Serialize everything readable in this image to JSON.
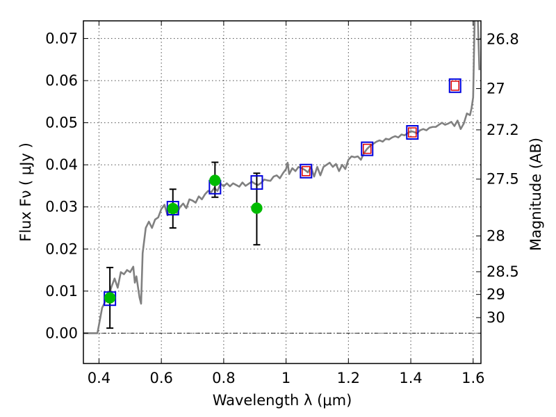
{
  "chart_data": {
    "type": "scatter",
    "xlabel": "Wavelength  λ (μm)",
    "ylabel": "Flux  Fν  ( μJy )",
    "y2label": "Magnitude (AB)",
    "xlim": [
      0.35,
      1.625
    ],
    "ylim": [
      -0.0072,
      0.0742
    ],
    "x_ticks": [
      0.4,
      0.6,
      0.8,
      1.0,
      1.2,
      1.4,
      1.6
    ],
    "x_tick_labels": [
      "0.4",
      "0.6",
      "0.8",
      "1",
      "1.2",
      "1.4",
      "1.6"
    ],
    "y_ticks": [
      0.0,
      0.01,
      0.02,
      0.03,
      0.04,
      0.05,
      0.06,
      0.07
    ],
    "y_tick_labels": [
      "0.00",
      "0.01",
      "0.02",
      "0.03",
      "0.04",
      "0.05",
      "0.06",
      "0.07"
    ],
    "magnitude_ticks": [
      {
        "label": "26.8",
        "flux": 0.0698
      },
      {
        "label": "27",
        "flux": 0.0581
      },
      {
        "label": "27.2",
        "flux": 0.0483
      },
      {
        "label": "27.5",
        "flux": 0.0366
      },
      {
        "label": "28",
        "flux": 0.0231
      },
      {
        "label": "28.5",
        "flux": 0.0146
      },
      {
        "label": "29",
        "flux": 0.0092
      },
      {
        "label": "30",
        "flux": 0.0037
      }
    ],
    "grid": true,
    "zero_line": true,
    "colors": {
      "model": "#808080",
      "observed": "#00bb00",
      "model_box": "#0000dd",
      "inner_box": "#dd0000",
      "errorbar": "#000000"
    },
    "series": [
      {
        "type": "line",
        "points": [
          [
            0.35,
            0.0
          ],
          [
            0.38,
            0.0
          ],
          [
            0.395,
            0.0
          ],
          [
            0.41,
            0.006
          ],
          [
            0.42,
            0.0075
          ],
          [
            0.43,
            0.0085
          ],
          [
            0.44,
            0.011
          ],
          [
            0.45,
            0.013
          ],
          [
            0.46,
            0.0108
          ],
          [
            0.47,
            0.0145
          ],
          [
            0.48,
            0.014
          ],
          [
            0.49,
            0.015
          ],
          [
            0.5,
            0.0145
          ],
          [
            0.51,
            0.0158
          ],
          [
            0.515,
            0.012
          ],
          [
            0.52,
            0.0135
          ],
          [
            0.53,
            0.0085
          ],
          [
            0.535,
            0.007
          ],
          [
            0.54,
            0.019
          ],
          [
            0.55,
            0.025
          ],
          [
            0.56,
            0.0265
          ],
          [
            0.57,
            0.025
          ],
          [
            0.58,
            0.027
          ],
          [
            0.59,
            0.0275
          ],
          [
            0.6,
            0.0295
          ],
          [
            0.61,
            0.0305
          ],
          [
            0.62,
            0.028
          ],
          [
            0.63,
            0.0295
          ],
          [
            0.64,
            0.0302
          ],
          [
            0.65,
            0.0285
          ],
          [
            0.66,
            0.03
          ],
          [
            0.67,
            0.0308
          ],
          [
            0.68,
            0.0297
          ],
          [
            0.69,
            0.0318
          ],
          [
            0.7,
            0.0315
          ],
          [
            0.71,
            0.031
          ],
          [
            0.72,
            0.0325
          ],
          [
            0.73,
            0.0318
          ],
          [
            0.74,
            0.033
          ],
          [
            0.75,
            0.0338
          ],
          [
            0.76,
            0.0335
          ],
          [
            0.77,
            0.0345
          ],
          [
            0.78,
            0.0338
          ],
          [
            0.79,
            0.0355
          ],
          [
            0.8,
            0.0349
          ],
          [
            0.81,
            0.0356
          ],
          [
            0.82,
            0.0349
          ],
          [
            0.83,
            0.0356
          ],
          [
            0.84,
            0.0352
          ],
          [
            0.85,
            0.0348
          ],
          [
            0.86,
            0.0358
          ],
          [
            0.87,
            0.035
          ],
          [
            0.88,
            0.0355
          ],
          [
            0.89,
            0.036
          ],
          [
            0.9,
            0.0355
          ],
          [
            0.91,
            0.0352
          ],
          [
            0.92,
            0.0357
          ],
          [
            0.93,
            0.0365
          ],
          [
            0.94,
            0.0363
          ],
          [
            0.95,
            0.0362
          ],
          [
            0.96,
            0.0372
          ],
          [
            0.97,
            0.0375
          ],
          [
            0.98,
            0.0368
          ],
          [
            0.99,
            0.038
          ],
          [
            1.0,
            0.039
          ],
          [
            1.005,
            0.0405
          ],
          [
            1.01,
            0.0378
          ],
          [
            1.02,
            0.0392
          ],
          [
            1.03,
            0.0385
          ],
          [
            1.04,
            0.0395
          ],
          [
            1.05,
            0.0392
          ],
          [
            1.06,
            0.0388
          ],
          [
            1.07,
            0.0382
          ],
          [
            1.08,
            0.0395
          ],
          [
            1.09,
            0.0372
          ],
          [
            1.1,
            0.0395
          ],
          [
            1.11,
            0.0375
          ],
          [
            1.12,
            0.0395
          ],
          [
            1.13,
            0.04
          ],
          [
            1.14,
            0.0405
          ],
          [
            1.15,
            0.0395
          ],
          [
            1.16,
            0.0402
          ],
          [
            1.17,
            0.0385
          ],
          [
            1.18,
            0.04
          ],
          [
            1.19,
            0.039
          ],
          [
            1.2,
            0.0412
          ],
          [
            1.21,
            0.042
          ],
          [
            1.22,
            0.0418
          ],
          [
            1.23,
            0.042
          ],
          [
            1.24,
            0.0412
          ],
          [
            1.25,
            0.0428
          ],
          [
            1.26,
            0.0438
          ],
          [
            1.27,
            0.0445
          ],
          [
            1.28,
            0.045
          ],
          [
            1.29,
            0.0455
          ],
          [
            1.3,
            0.0458
          ],
          [
            1.31,
            0.0455
          ],
          [
            1.32,
            0.0462
          ],
          [
            1.33,
            0.046
          ],
          [
            1.34,
            0.0465
          ],
          [
            1.35,
            0.0468
          ],
          [
            1.36,
            0.0465
          ],
          [
            1.37,
            0.0472
          ],
          [
            1.38,
            0.047
          ],
          [
            1.39,
            0.0475
          ],
          [
            1.4,
            0.048
          ],
          [
            1.41,
            0.0478
          ],
          [
            1.42,
            0.0475
          ],
          [
            1.43,
            0.0482
          ],
          [
            1.44,
            0.0485
          ],
          [
            1.45,
            0.0482
          ],
          [
            1.46,
            0.0488
          ],
          [
            1.47,
            0.049
          ],
          [
            1.48,
            0.049
          ],
          [
            1.49,
            0.0495
          ],
          [
            1.5,
            0.05
          ],
          [
            1.51,
            0.0495
          ],
          [
            1.52,
            0.0498
          ],
          [
            1.53,
            0.0502
          ],
          [
            1.54,
            0.0492
          ],
          [
            1.55,
            0.0505
          ],
          [
            1.56,
            0.0485
          ],
          [
            1.57,
            0.0498
          ],
          [
            1.58,
            0.0522
          ],
          [
            1.59,
            0.0518
          ],
          [
            1.595,
            0.0535
          ],
          [
            1.6,
            0.056
          ],
          [
            1.605,
            0.075
          ],
          [
            1.61,
            0.075
          ],
          [
            1.615,
            0.075
          ],
          [
            1.62,
            0.0625
          ]
        ]
      },
      {
        "type": "model_boxes",
        "points": [
          [
            0.435,
            0.0082
          ],
          [
            0.637,
            0.0297
          ],
          [
            0.772,
            0.0347
          ],
          [
            0.906,
            0.0358
          ],
          [
            1.064,
            0.0385
          ],
          [
            1.26,
            0.0438
          ],
          [
            1.405,
            0.0477
          ],
          [
            1.542,
            0.0588
          ]
        ]
      },
      {
        "type": "inner_boxes",
        "points": [
          [
            1.064,
            0.0385
          ],
          [
            1.26,
            0.0438
          ],
          [
            1.405,
            0.0477
          ],
          [
            1.542,
            0.0588
          ]
        ]
      },
      {
        "type": "observed",
        "points": [
          {
            "x": 0.435,
            "y": 0.0084,
            "err_low": 0.0072,
            "err_high": 0.0072
          },
          {
            "x": 0.637,
            "y": 0.0296,
            "err_low": 0.0046,
            "err_high": 0.0046
          },
          {
            "x": 0.772,
            "y": 0.0363,
            "err_low": 0.004,
            "err_high": 0.0043
          },
          {
            "x": 0.906,
            "y": 0.0297,
            "err_low": 0.0087,
            "err_high": 0.0083
          }
        ]
      }
    ]
  }
}
